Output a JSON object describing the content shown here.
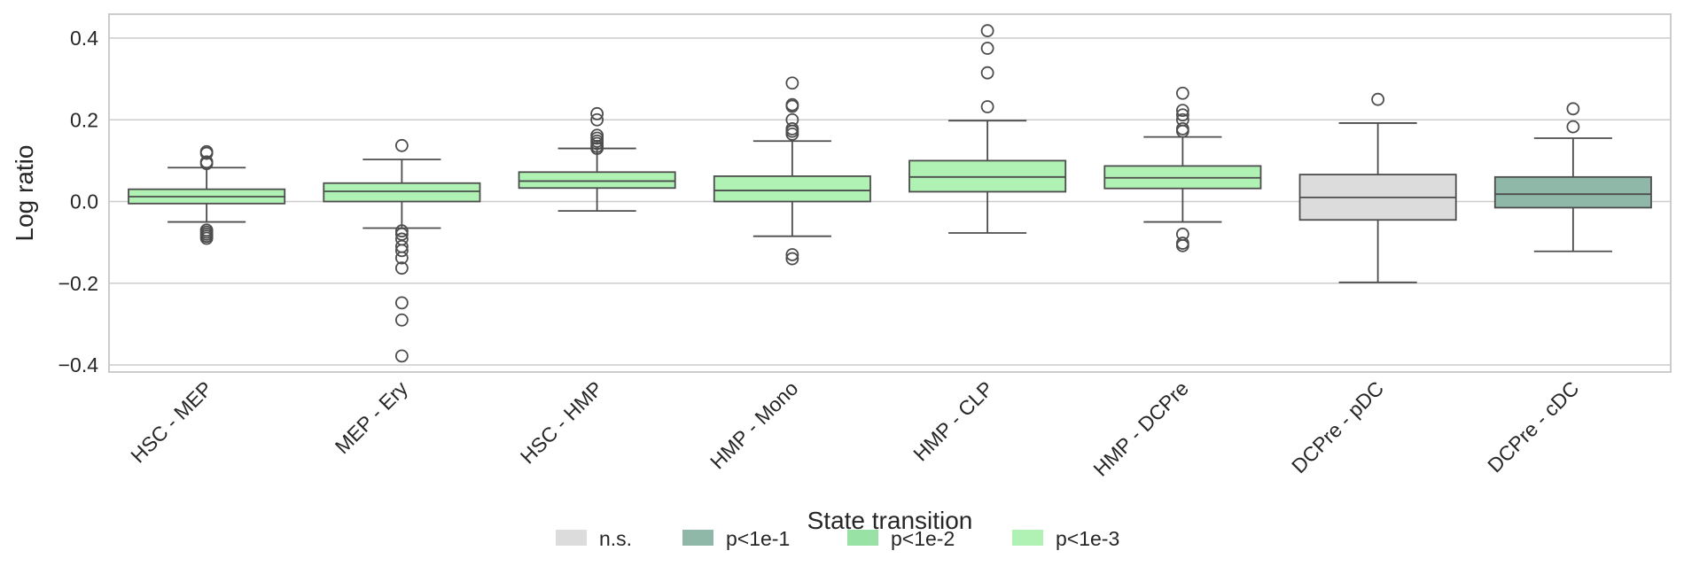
{
  "chart_data": {
    "type": "boxplot",
    "ylabel": "Log ratio",
    "xlabel": "State transition",
    "ylim": [
      -0.42,
      0.46
    ],
    "yticks": [
      {
        "value": 0.4,
        "label": "0.4"
      },
      {
        "value": 0.2,
        "label": "0.2"
      },
      {
        "value": 0.0,
        "label": "0.0"
      },
      {
        "value": -0.2,
        "label": "−0.2"
      },
      {
        "value": -0.4,
        "label": "−0.4"
      }
    ],
    "grid": true,
    "categories": [
      "HSC - MEP",
      "MEP - Ery",
      "HSC - HMP",
      "HMP - Mono",
      "HMP - CLP",
      "HMP - DCPre",
      "DCPre - pDC",
      "DCPre - cDC"
    ],
    "boxes": [
      {
        "category": "HSC - MEP",
        "significance": "p<1e-3",
        "whisker_low": -0.05,
        "q1": -0.005,
        "median": 0.012,
        "q3": 0.03,
        "whisker_high": 0.083,
        "outliers": [
          0.122,
          0.118,
          0.097,
          0.093,
          -0.07,
          -0.075,
          -0.08,
          -0.085,
          -0.09
        ]
      },
      {
        "category": "MEP - Ery",
        "significance": "p<1e-3",
        "whisker_low": -0.065,
        "q1": 0.0,
        "median": 0.025,
        "q3": 0.045,
        "whisker_high": 0.103,
        "outliers": [
          0.137,
          -0.072,
          -0.08,
          -0.092,
          -0.11,
          -0.12,
          -0.138,
          -0.163,
          -0.248,
          -0.29,
          -0.378
        ]
      },
      {
        "category": "HSC - HMP",
        "significance": "p<1e-3",
        "whisker_low": -0.023,
        "q1": 0.033,
        "median": 0.05,
        "q3": 0.072,
        "whisker_high": 0.13,
        "outliers": [
          0.215,
          0.2,
          0.162,
          0.155,
          0.148,
          0.142,
          0.135,
          0.13
        ]
      },
      {
        "category": "HMP - Mono",
        "significance": "p<1e-3",
        "whisker_low": -0.085,
        "q1": 0.0,
        "median": 0.027,
        "q3": 0.062,
        "whisker_high": 0.148,
        "outliers": [
          0.29,
          0.237,
          0.233,
          0.2,
          0.178,
          0.172,
          0.165,
          -0.13,
          -0.14
        ]
      },
      {
        "category": "HMP - CLP",
        "significance": "p<1e-3",
        "whisker_low": -0.077,
        "q1": 0.024,
        "median": 0.06,
        "q3": 0.1,
        "whisker_high": 0.198,
        "outliers": [
          0.418,
          0.375,
          0.315,
          0.232
        ]
      },
      {
        "category": "HMP - DCPre",
        "significance": "p<1e-3",
        "whisker_low": -0.05,
        "q1": 0.032,
        "median": 0.058,
        "q3": 0.087,
        "whisker_high": 0.158,
        "outliers": [
          0.265,
          0.223,
          0.212,
          0.2,
          0.178,
          0.172,
          -0.08,
          -0.102,
          -0.108
        ]
      },
      {
        "category": "DCPre - pDC",
        "significance": "n.s.",
        "whisker_low": -0.198,
        "q1": -0.045,
        "median": 0.01,
        "q3": 0.066,
        "whisker_high": 0.192,
        "outliers": [
          0.25
        ]
      },
      {
        "category": "DCPre - cDC",
        "significance": "p<1e-1",
        "whisker_low": -0.122,
        "q1": -0.015,
        "median": 0.018,
        "q3": 0.06,
        "whisker_high": 0.155,
        "outliers": [
          0.227,
          0.183
        ]
      }
    ],
    "legend": {
      "placement": "bottom-center",
      "items": [
        {
          "label": "n.s.",
          "color": "#dcdcdc"
        },
        {
          "label": "p<1e-1",
          "color": "#8fb8a8"
        },
        {
          "label": "p<1e-2",
          "color": "#99e2a6"
        },
        {
          "label": "p<1e-3",
          "color": "#b0f2b4"
        }
      ]
    },
    "colors": {
      "n.s.": "#dcdcdc",
      "p<1e-1": "#8fb8a8",
      "p<1e-2": "#99e2a6",
      "p<1e-3": "#b0f2b4",
      "line": "#4d4d4d",
      "grid": "#cccccc",
      "frame": "#cccccc"
    }
  }
}
